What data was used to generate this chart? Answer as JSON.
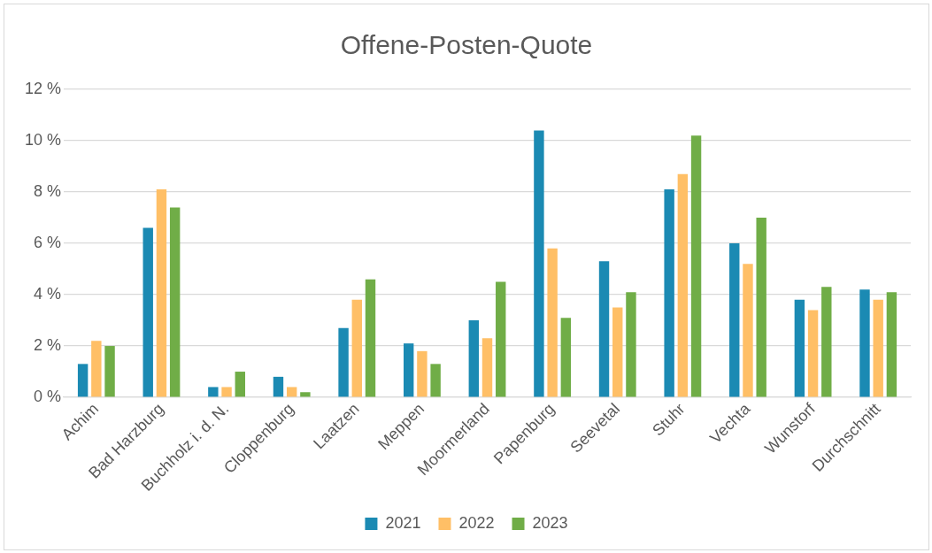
{
  "chart_data": {
    "type": "bar",
    "title": "Offene-Posten-Quote",
    "categories": [
      "Achim",
      "Bad Harzburg",
      "Buchholz i. d. N.",
      "Cloppenburg",
      "Laatzen",
      "Meppen",
      "Moormerland",
      "Papenburg",
      "Seevetal",
      "Stuhr",
      "Vechta",
      "Wunstorf",
      "Durchschnitt"
    ],
    "series": [
      {
        "name": "2021",
        "color": "#1b8ab3",
        "values": [
          1.3,
          6.6,
          0.4,
          0.8,
          2.7,
          2.1,
          3.0,
          10.4,
          5.3,
          8.1,
          6.0,
          3.8,
          4.2
        ]
      },
      {
        "name": "2022",
        "color": "#ffbf66",
        "values": [
          2.2,
          8.1,
          0.4,
          0.4,
          3.8,
          1.8,
          2.3,
          5.8,
          3.5,
          8.7,
          5.2,
          3.4,
          3.8
        ]
      },
      {
        "name": "2023",
        "color": "#70ad47",
        "values": [
          2.0,
          7.4,
          1.0,
          0.2,
          4.6,
          1.3,
          4.5,
          3.1,
          4.1,
          10.2,
          7.0,
          4.3,
          4.1
        ]
      }
    ],
    "ylim": [
      0,
      12
    ],
    "yticks": [
      {
        "value": 0,
        "label": "0 %"
      },
      {
        "value": 2,
        "label": "2 %"
      },
      {
        "value": 4,
        "label": "4 %"
      },
      {
        "value": 6,
        "label": "6 %"
      },
      {
        "value": 8,
        "label": "8 %"
      },
      {
        "value": 10,
        "label": "10 %"
      },
      {
        "value": 12,
        "label": "12 %"
      }
    ],
    "grid": "y",
    "legend": "bottom"
  }
}
